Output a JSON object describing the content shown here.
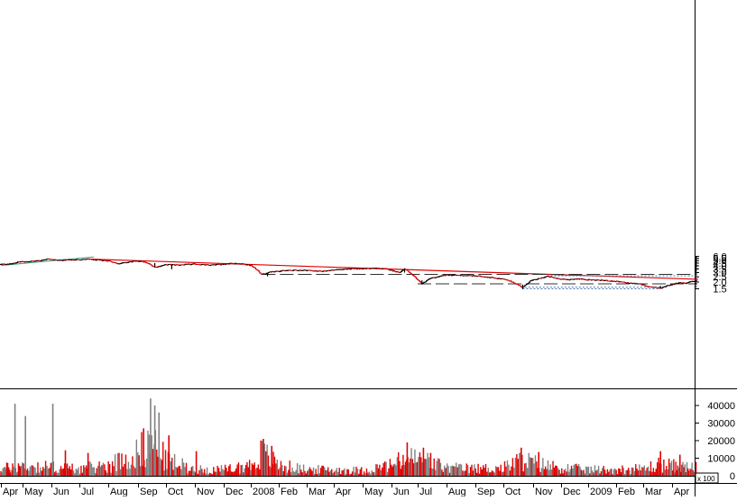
{
  "chart_data": [
    {
      "type": "candlestick",
      "panel": "price",
      "y_scale": "log",
      "ylim": [
        1.38,
        6.3
      ],
      "y_ticks": [
        "6.0",
        "5.5",
        "5.0",
        "4.5",
        "4.0",
        "3.5",
        "3.0",
        "2.5",
        "2.0",
        "1.5"
      ],
      "y_tick_values": [
        6.0,
        5.5,
        5.0,
        4.5,
        4.0,
        3.5,
        3.0,
        2.5,
        2.0,
        1.5
      ],
      "x_labels": [
        "Apr",
        "May",
        "Jun",
        "Jul",
        "Aug",
        "Sep",
        "Oct",
        "Nov",
        "Dec",
        "2008",
        "Feb",
        "Mar",
        "Apr",
        "May",
        "Jun",
        "Jul",
        "Aug",
        "Sep",
        "Oct",
        "Nov",
        "Dec",
        "2009",
        "Feb",
        "Mar",
        "Apr"
      ],
      "close_path": [
        {
          "m": 0.0,
          "v": 4.25
        },
        {
          "m": 0.5,
          "v": 4.35
        },
        {
          "m": 0.8,
          "v": 4.7
        },
        {
          "m": 1.2,
          "v": 4.8
        },
        {
          "m": 1.6,
          "v": 5.0
        },
        {
          "m": 1.9,
          "v": 5.4
        },
        {
          "m": 2.2,
          "v": 5.05
        },
        {
          "m": 2.8,
          "v": 5.15
        },
        {
          "m": 3.3,
          "v": 5.3
        },
        {
          "m": 3.6,
          "v": 5.1
        },
        {
          "m": 4.0,
          "v": 4.95
        },
        {
          "m": 4.3,
          "v": 4.4
        },
        {
          "m": 4.5,
          "v": 4.5
        },
        {
          "m": 4.8,
          "v": 4.8
        },
        {
          "m": 5.1,
          "v": 4.9
        },
        {
          "m": 5.4,
          "v": 4.3
        },
        {
          "m": 5.6,
          "v": 3.75
        },
        {
          "m": 6.0,
          "v": 4.2
        },
        {
          "m": 6.5,
          "v": 4.15
        },
        {
          "m": 7.0,
          "v": 4.3
        },
        {
          "m": 7.5,
          "v": 4.1
        },
        {
          "m": 8.0,
          "v": 4.3
        },
        {
          "m": 8.3,
          "v": 4.45
        },
        {
          "m": 8.7,
          "v": 4.35
        },
        {
          "m": 9.0,
          "v": 4.05
        },
        {
          "m": 9.2,
          "v": 3.4
        },
        {
          "m": 9.35,
          "v": 2.85
        },
        {
          "m": 9.5,
          "v": 2.8
        },
        {
          "m": 9.7,
          "v": 3.1
        },
        {
          "m": 10.0,
          "v": 3.2
        },
        {
          "m": 10.5,
          "v": 3.3
        },
        {
          "m": 11.0,
          "v": 3.3
        },
        {
          "m": 11.5,
          "v": 3.15
        },
        {
          "m": 12.0,
          "v": 3.35
        },
        {
          "m": 12.5,
          "v": 3.5
        },
        {
          "m": 13.0,
          "v": 3.55
        },
        {
          "m": 13.5,
          "v": 3.6
        },
        {
          "m": 13.8,
          "v": 3.5
        },
        {
          "m": 14.0,
          "v": 3.3
        },
        {
          "m": 14.3,
          "v": 3.0
        },
        {
          "m": 14.5,
          "v": 3.5
        },
        {
          "m": 14.7,
          "v": 2.9
        },
        {
          "m": 14.85,
          "v": 2.6
        },
        {
          "m": 15.05,
          "v": 2.05
        },
        {
          "m": 15.15,
          "v": 1.85
        },
        {
          "m": 15.4,
          "v": 2.3
        },
        {
          "m": 15.7,
          "v": 2.5
        },
        {
          "m": 16.0,
          "v": 2.7
        },
        {
          "m": 16.5,
          "v": 2.65
        },
        {
          "m": 17.0,
          "v": 2.6
        },
        {
          "m": 17.5,
          "v": 2.45
        },
        {
          "m": 18.0,
          "v": 2.25
        },
        {
          "m": 18.3,
          "v": 2.0
        },
        {
          "m": 18.5,
          "v": 1.75
        },
        {
          "m": 18.65,
          "v": 1.58
        },
        {
          "m": 18.9,
          "v": 2.1
        },
        {
          "m": 19.2,
          "v": 2.3
        },
        {
          "m": 19.5,
          "v": 2.55
        },
        {
          "m": 19.8,
          "v": 2.35
        },
        {
          "m": 20.2,
          "v": 2.2
        },
        {
          "m": 20.6,
          "v": 2.3
        },
        {
          "m": 21.0,
          "v": 2.2
        },
        {
          "m": 21.5,
          "v": 2.15
        },
        {
          "m": 22.0,
          "v": 2.05
        },
        {
          "m": 22.5,
          "v": 1.9
        },
        {
          "m": 22.9,
          "v": 1.85
        },
        {
          "m": 23.1,
          "v": 1.65
        },
        {
          "m": 23.4,
          "v": 1.6
        },
        {
          "m": 23.6,
          "v": 1.52
        },
        {
          "m": 23.8,
          "v": 1.7
        },
        {
          "m": 24.0,
          "v": 1.8
        },
        {
          "m": 24.3,
          "v": 1.95
        },
        {
          "m": 24.6,
          "v": 1.9
        },
        {
          "m": 24.9,
          "v": 2.05
        },
        {
          "m": 25.1,
          "v": 2.1
        }
      ],
      "lines": {
        "downtrend": {
          "color": "#e00000",
          "start": {
            "m": 3.4,
            "v": 5.32
          },
          "end": {
            "m": 25.15,
            "v": 2.25
          }
        },
        "early_uptrend": {
          "color": "#3c9a78",
          "start": {
            "m": 0.0,
            "v": 4.05
          },
          "end": {
            "m": 3.5,
            "v": 5.85
          }
        },
        "support_high": {
          "color": "#303030",
          "style": "long-dash",
          "v": 2.78,
          "from_m": 9.4,
          "to_m": 25.1
        },
        "support_mid": {
          "color": "#303030",
          "style": "long-dash",
          "v": 1.85,
          "from_m": 15.0,
          "to_m": 25.1
        },
        "dotted_top": {
          "color": "#4a78b0",
          "style": "dotted",
          "v": 2.6,
          "from_m": 19.5,
          "to_m": 25.1
        },
        "dotted_low1": {
          "color": "#4a78b0",
          "style": "dotted",
          "v": 1.6,
          "from_m": 18.6,
          "to_m": 23.6
        },
        "dotted_low2": {
          "color": "#4a78b0",
          "style": "dotted",
          "v": 1.5,
          "from_m": 18.65,
          "to_m": 23.55
        }
      }
    },
    {
      "type": "bar",
      "panel": "volume",
      "ylim": [
        0,
        48000
      ],
      "y_ticks": [
        "40000",
        "30000",
        "20000",
        "10000",
        "0"
      ],
      "y_tick_values": [
        40000,
        30000,
        20000,
        10000,
        0
      ],
      "scale_label": "x 100",
      "up_color": "#808080",
      "down_color": "#e00000",
      "level_profile": [
        {
          "m": 0.0,
          "v": 4000
        },
        {
          "m": 1.0,
          "v": 5500
        },
        {
          "m": 2.0,
          "v": 5000
        },
        {
          "m": 3.0,
          "v": 4000
        },
        {
          "m": 4.0,
          "v": 6000
        },
        {
          "m": 5.0,
          "v": 13000
        },
        {
          "m": 5.5,
          "v": 19000
        },
        {
          "m": 6.0,
          "v": 9000
        },
        {
          "m": 7.0,
          "v": 3500
        },
        {
          "m": 8.0,
          "v": 3500
        },
        {
          "m": 9.0,
          "v": 6000
        },
        {
          "m": 9.4,
          "v": 13000
        },
        {
          "m": 10.0,
          "v": 6000
        },
        {
          "m": 11.0,
          "v": 3500
        },
        {
          "m": 12.0,
          "v": 3500
        },
        {
          "m": 13.0,
          "v": 3000
        },
        {
          "m": 14.0,
          "v": 6000
        },
        {
          "m": 14.6,
          "v": 10000
        },
        {
          "m": 15.2,
          "v": 9000
        },
        {
          "m": 16.0,
          "v": 4500
        },
        {
          "m": 17.0,
          "v": 4000
        },
        {
          "m": 18.0,
          "v": 4500
        },
        {
          "m": 18.6,
          "v": 9000
        },
        {
          "m": 19.2,
          "v": 6500
        },
        {
          "m": 20.0,
          "v": 4500
        },
        {
          "m": 21.0,
          "v": 3500
        },
        {
          "m": 22.0,
          "v": 3500
        },
        {
          "m": 23.0,
          "v": 4000
        },
        {
          "m": 23.6,
          "v": 6500
        },
        {
          "m": 24.3,
          "v": 5000
        },
        {
          "m": 25.1,
          "v": 4500
        }
      ],
      "spikes": [
        {
          "m": 0.65,
          "v": 41000
        },
        {
          "m": 1.1,
          "v": 34000
        },
        {
          "m": 2.05,
          "v": 41000
        },
        {
          "m": 2.5,
          "v": 14500
        },
        {
          "m": 3.3,
          "v": 13000
        },
        {
          "m": 5.45,
          "v": 44000
        },
        {
          "m": 5.6,
          "v": 40000
        },
        {
          "m": 5.75,
          "v": 36000
        },
        {
          "m": 5.2,
          "v": 27000
        },
        {
          "m": 6.1,
          "v": 23000
        },
        {
          "m": 7.05,
          "v": 14000
        },
        {
          "m": 9.45,
          "v": 21000
        },
        {
          "m": 9.75,
          "v": 17000
        },
        {
          "m": 14.6,
          "v": 19000
        },
        {
          "m": 15.2,
          "v": 16000
        },
        {
          "m": 15.45,
          "v": 13000
        },
        {
          "m": 18.6,
          "v": 16000
        },
        {
          "m": 19.2,
          "v": 13500
        },
        {
          "m": 23.6,
          "v": 14000
        },
        {
          "m": 24.35,
          "v": 12000
        }
      ]
    }
  ]
}
